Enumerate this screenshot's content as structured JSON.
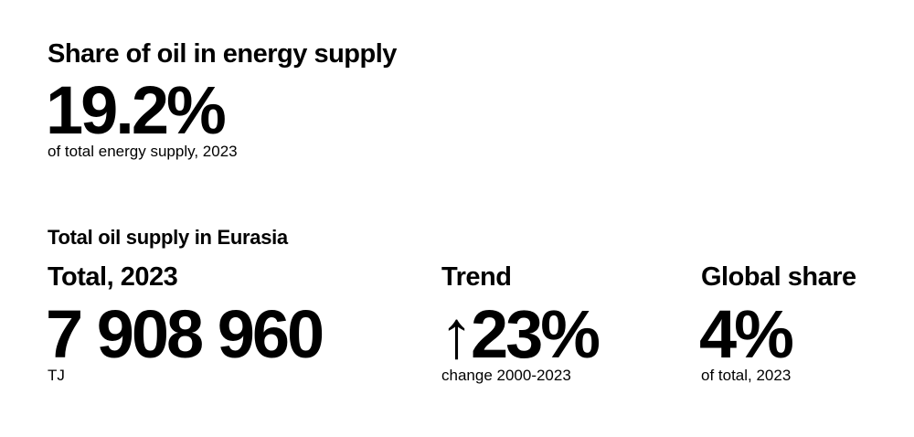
{
  "header": {
    "title": "Share of oil in energy supply",
    "value": "19.2%",
    "caption": "of total energy supply, 2023"
  },
  "section": {
    "title": "Total oil supply in Eurasia",
    "stats": [
      {
        "label": "Total, 2023",
        "value": "7 908 960",
        "caption": "TJ"
      },
      {
        "label": "Trend",
        "value": "↑23%",
        "caption": "change 2000-2023"
      },
      {
        "label": "Global share",
        "value": "4%",
        "caption": "of total, 2023"
      }
    ]
  }
}
